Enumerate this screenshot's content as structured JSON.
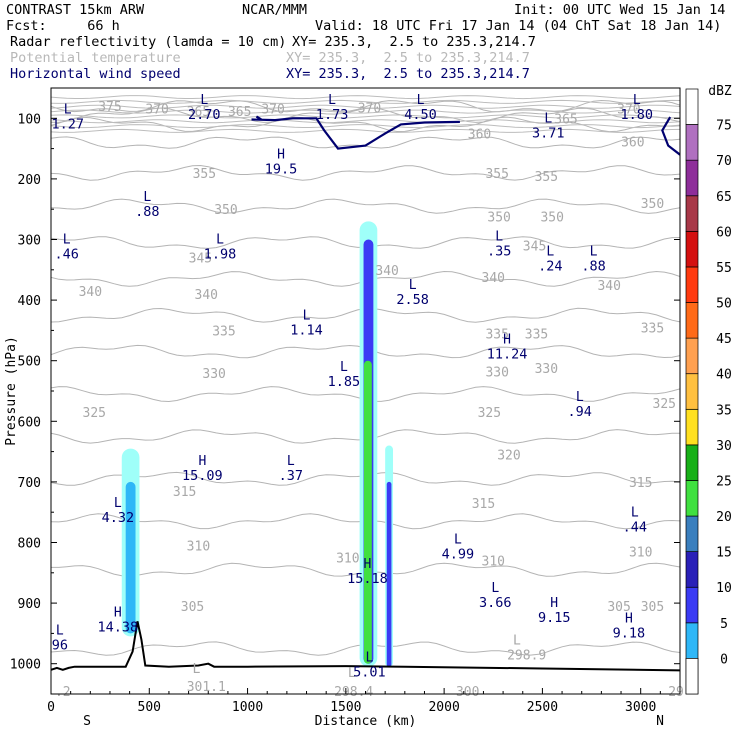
{
  "header": {
    "left1": "CONTRAST 15km ARW",
    "center1": "NCAR/MMM",
    "right1": "Init: 00 UTC Wed 15 Jan 14",
    "left2": "Fcst:     66 h",
    "right2": "Valid: 18 UTC Fri 17 Jan 14 (04 ChT Sat 18 Jan 14)",
    "field1": "Radar reflectivity (lamda = 10 cm)",
    "xy1": "XY= 235.3,  2.5 to 235.3,214.7",
    "field2": "Potential temperature",
    "xy2": "XY= 235.3,  2.5 to 235.3,214.7",
    "field3": "Horizontal wind speed",
    "xy3": "XY= 235.3,  2.5 to 235.3,214.7"
  },
  "chart_data": {
    "type": "cross-section",
    "xlabel": "Distance (km)",
    "ylabel": "Pressure (hPa)",
    "x_ticks": [
      0,
      500,
      1000,
      1500,
      2000,
      2500,
      3000
    ],
    "x_ticklabels": [
      "0",
      "500",
      "1000",
      "1500",
      "2000",
      "2500",
      "3000"
    ],
    "xlim": [
      0,
      3200
    ],
    "y_ticks": [
      100,
      200,
      300,
      400,
      500,
      600,
      700,
      800,
      900,
      1000
    ],
    "y_ticklabels": [
      "100",
      "200",
      "300",
      "400",
      "500",
      "600",
      "700",
      "800",
      "900",
      "1000"
    ],
    "ylim": [
      1050,
      50
    ],
    "end_labels": {
      "left": "S",
      "right": "N"
    },
    "colorbar": {
      "unit": "dBZ",
      "levels": [
        "0",
        "5",
        "10",
        "15",
        "20",
        "25",
        "30",
        "35",
        "40",
        "45",
        "50",
        "55",
        "60",
        "65",
        "70",
        "75"
      ],
      "colors": [
        "#9ffff9",
        "#2fb7f7",
        "#3b3bf4",
        "#2a20b8",
        "#3a7fbe",
        "#40e040",
        "#18b018",
        "#ffe020",
        "#ffc040",
        "#ffa050",
        "#ff6a18",
        "#ff3a10",
        "#d41010",
        "#a83848",
        "#8e2e9a",
        "#b070c0"
      ]
    },
    "theta_contours": [
      {
        "label": "375",
        "p": 80
      },
      {
        "label": "370",
        "p": 95
      },
      {
        "label": "365",
        "p": 110
      },
      {
        "label": "360",
        "p": 140
      },
      {
        "label": "355",
        "p": 190
      },
      {
        "label": "350",
        "p": 245
      },
      {
        "label": "345",
        "p": 305
      },
      {
        "label": "340",
        "p": 365
      },
      {
        "label": "335",
        "p": 425
      },
      {
        "label": "330",
        "p": 485
      },
      {
        "label": "325",
        "p": 555
      },
      {
        "label": "320",
        "p": 625
      },
      {
        "label": "315",
        "p": 695
      },
      {
        "label": "310",
        "p": 765
      },
      {
        "label": "305",
        "p": 845
      },
      {
        "label": "300",
        "p": 975
      }
    ],
    "theta_labels": [
      {
        "text": "375",
        "x": 300,
        "p": 80
      },
      {
        "text": "370",
        "x": 540,
        "p": 84
      },
      {
        "text": "365",
        "x": 750,
        "p": 88
      },
      {
        "text": "365",
        "x": 960,
        "p": 88
      },
      {
        "text": "370",
        "x": 1130,
        "p": 84
      },
      {
        "text": "370",
        "x": 1620,
        "p": 82
      },
      {
        "text": "370",
        "x": 2940,
        "p": 84
      },
      {
        "text": "365",
        "x": 2620,
        "p": 100
      },
      {
        "text": "360",
        "x": 2180,
        "p": 125
      },
      {
        "text": "360",
        "x": 2960,
        "p": 138
      },
      {
        "text": "355",
        "x": 780,
        "p": 190
      },
      {
        "text": "355",
        "x": 2270,
        "p": 190
      },
      {
        "text": "355",
        "x": 2520,
        "p": 195
      },
      {
        "text": "350",
        "x": 890,
        "p": 250
      },
      {
        "text": "350",
        "x": 2280,
        "p": 262
      },
      {
        "text": "350",
        "x": 2550,
        "p": 262
      },
      {
        "text": "350",
        "x": 3060,
        "p": 240
      },
      {
        "text": "345",
        "x": 760,
        "p": 330
      },
      {
        "text": "345",
        "x": 2460,
        "p": 310
      },
      {
        "text": "340",
        "x": 1710,
        "p": 350
      },
      {
        "text": "340",
        "x": 200,
        "p": 385
      },
      {
        "text": "340",
        "x": 790,
        "p": 390
      },
      {
        "text": "340",
        "x": 2250,
        "p": 362
      },
      {
        "text": "340",
        "x": 2840,
        "p": 375
      },
      {
        "text": "335",
        "x": 880,
        "p": 450
      },
      {
        "text": "335",
        "x": 2270,
        "p": 455
      },
      {
        "text": "335",
        "x": 2470,
        "p": 455
      },
      {
        "text": "335",
        "x": 3060,
        "p": 445
      },
      {
        "text": "330",
        "x": 830,
        "p": 520
      },
      {
        "text": "330",
        "x": 2270,
        "p": 518
      },
      {
        "text": "330",
        "x": 2520,
        "p": 512
      },
      {
        "text": "325",
        "x": 220,
        "p": 585
      },
      {
        "text": "325",
        "x": 2230,
        "p": 585
      },
      {
        "text": "325",
        "x": 3120,
        "p": 570
      },
      {
        "text": "320",
        "x": 2330,
        "p": 655
      },
      {
        "text": "315",
        "x": 680,
        "p": 715
      },
      {
        "text": "315",
        "x": 2200,
        "p": 735
      },
      {
        "text": "315",
        "x": 3000,
        "p": 700
      },
      {
        "text": "310",
        "x": 750,
        "p": 805
      },
      {
        "text": "310",
        "x": 1510,
        "p": 825
      },
      {
        "text": "310",
        "x": 2250,
        "p": 830
      },
      {
        "text": "310",
        "x": 3000,
        "p": 815
      },
      {
        "text": "305",
        "x": 720,
        "p": 905
      },
      {
        "text": "305",
        "x": 2890,
        "p": 905
      },
      {
        "text": "305",
        "x": 3060,
        "p": 905
      },
      {
        "text": "298.9",
        "x": 2420,
        "p": 985
      },
      {
        "text": "301.1",
        "x": 790,
        "p": 1037
      },
      {
        "text": "298.4",
        "x": 1540,
        "p": 1045
      },
      {
        "text": "300",
        "x": 2120,
        "p": 1045
      },
      {
        "text": "29",
        "x": 3180,
        "p": 1045
      },
      {
        "text": ".2",
        "x": 60,
        "p": 1045
      }
    ],
    "theta_extrema": [
      {
        "type": "L",
        "value": "",
        "x": 2370,
        "p": 968
      },
      {
        "type": "L",
        "value": "",
        "x": 740,
        "p": 1015
      },
      {
        "type": "L",
        "value": "",
        "x": 1530,
        "p": 1022
      }
    ],
    "wind_extrema": [
      {
        "type": "L",
        "value": "1.27",
        "x": 85,
        "p": 95
      },
      {
        "type": "L",
        "value": "2.70",
        "x": 780,
        "p": 80
      },
      {
        "type": "L",
        "value": "1.73",
        "x": 1430,
        "p": 80
      },
      {
        "type": "L",
        "value": "4.50",
        "x": 1880,
        "p": 80
      },
      {
        "type": "L",
        "value": "3.71",
        "x": 2530,
        "p": 110
      },
      {
        "type": "L",
        "value": "1.80",
        "x": 2980,
        "p": 80
      },
      {
        "type": "H",
        "value": "19.5",
        "x": 1170,
        "p": 170
      },
      {
        "type": "L",
        "value": ".88",
        "x": 490,
        "p": 240
      },
      {
        "type": "L",
        "value": ".46",
        "x": 80,
        "p": 310
      },
      {
        "type": "L",
        "value": "1.98",
        "x": 860,
        "p": 310
      },
      {
        "type": "L",
        "value": ".35",
        "x": 2280,
        "p": 305
      },
      {
        "type": "L",
        "value": ".24",
        "x": 2540,
        "p": 330
      },
      {
        "type": "L",
        "value": ".88",
        "x": 2760,
        "p": 330
      },
      {
        "type": "L",
        "value": "2.58",
        "x": 1840,
        "p": 385
      },
      {
        "type": "L",
        "value": "1.14",
        "x": 1300,
        "p": 435
      },
      {
        "type": "H",
        "value": "11.24",
        "x": 2320,
        "p": 475
      },
      {
        "type": "L",
        "value": "1.85",
        "x": 1490,
        "p": 520
      },
      {
        "type": "L",
        "value": ".94",
        "x": 2690,
        "p": 570
      },
      {
        "type": "H",
        "value": "15.09",
        "x": 770,
        "p": 675
      },
      {
        "type": "L",
        "value": ".37",
        "x": 1220,
        "p": 675
      },
      {
        "type": "L",
        "value": "4.32",
        "x": 340,
        "p": 745
      },
      {
        "type": "L",
        "value": ".44",
        "x": 2970,
        "p": 760
      },
      {
        "type": "L",
        "value": "4.99",
        "x": 2070,
        "p": 805
      },
      {
        "type": "H",
        "value": "15.18",
        "x": 1610,
        "p": 845
      },
      {
        "type": "L",
        "value": "3.66",
        "x": 2260,
        "p": 885
      },
      {
        "type": "H",
        "value": "9.15",
        "x": 2560,
        "p": 910
      },
      {
        "type": "H",
        "value": "14.38",
        "x": 340,
        "p": 925
      },
      {
        "type": "H",
        "value": "9.18",
        "x": 2940,
        "p": 935
      },
      {
        "type": "L",
        "value": "96",
        "x": 45,
        "p": 955
      },
      {
        "type": "L",
        "value": "5.01",
        "x": 1620,
        "p": 1000
      }
    ],
    "wind_contour": {
      "segments": [
        [
          [
            1020,
            102
          ],
          [
            1140,
            103
          ],
          [
            1230,
            100
          ],
          [
            1350,
            100
          ],
          [
            1390,
            120
          ],
          [
            1460,
            150
          ],
          [
            1600,
            145
          ],
          [
            1700,
            125
          ],
          [
            1780,
            110
          ],
          [
            1900,
            107
          ],
          [
            2080,
            106
          ]
        ],
        [
          [
            1045,
            97
          ],
          [
            1070,
            102
          ]
        ],
        [
          [
            3150,
            98
          ],
          [
            3110,
            120
          ],
          [
            3140,
            145
          ],
          [
            3200,
            160
          ]
        ]
      ]
    },
    "reflectivity": [
      {
        "x": 1570,
        "x2": 1660,
        "p_top": 270,
        "p_bot": 1005,
        "level": "5"
      },
      {
        "x": 1590,
        "x2": 1640,
        "p_top": 300,
        "p_bot": 1000,
        "level": "15"
      },
      {
        "x": 1592,
        "x2": 1632,
        "p_top": 500,
        "p_bot": 1000,
        "level": "30"
      },
      {
        "x": 1700,
        "x2": 1740,
        "p_top": 640,
        "p_bot": 1005,
        "level": "5"
      },
      {
        "x": 1708,
        "x2": 1732,
        "p_top": 700,
        "p_bot": 1005,
        "level": "15"
      },
      {
        "x": 360,
        "x2": 450,
        "p_top": 645,
        "p_bot": 955,
        "level": "5"
      },
      {
        "x": 380,
        "x2": 430,
        "p_top": 700,
        "p_bot": 950,
        "level": "10"
      }
    ],
    "terrain": [
      [
        0,
        1010
      ],
      [
        30,
        1007
      ],
      [
        60,
        1010
      ],
      [
        90,
        1007
      ],
      [
        120,
        1005
      ],
      [
        180,
        1005
      ],
      [
        300,
        1005
      ],
      [
        380,
        1005
      ],
      [
        415,
        980
      ],
      [
        440,
        930
      ],
      [
        460,
        960
      ],
      [
        480,
        1003
      ],
      [
        600,
        1005
      ],
      [
        750,
        1003
      ],
      [
        800,
        1000
      ],
      [
        830,
        1005
      ],
      [
        1000,
        1005
      ],
      [
        1500,
        1004
      ],
      [
        1800,
        1005
      ],
      [
        2500,
        1008
      ],
      [
        3200,
        1011
      ]
    ]
  }
}
